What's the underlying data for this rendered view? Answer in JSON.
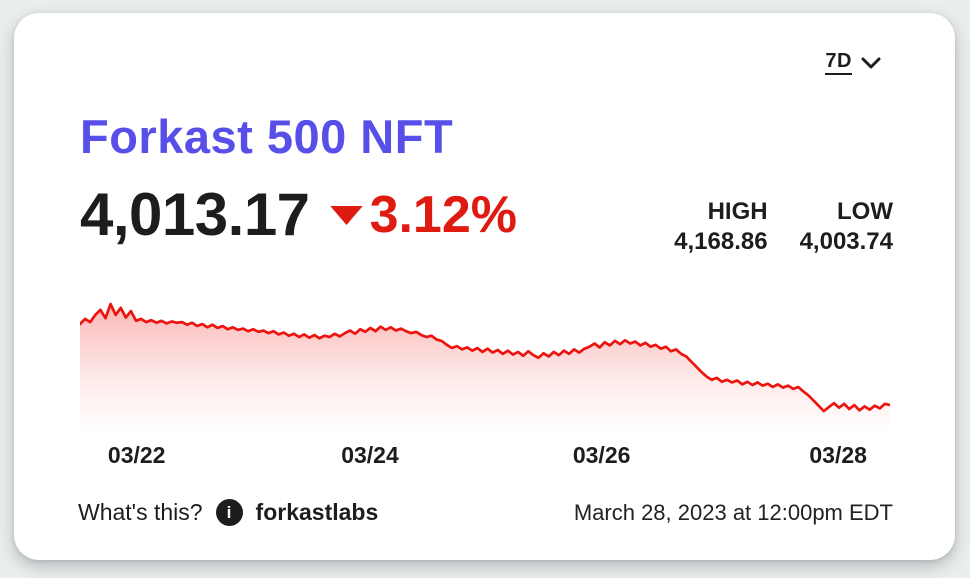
{
  "card": {
    "period_selector": {
      "label": "7D",
      "icon": "chevron-down-icon"
    },
    "title": "Forkast 500 NFT",
    "price": {
      "value": "4,013.17",
      "change": "3.12%",
      "direction": "down",
      "direction_icon": "down-arrow-icon"
    },
    "stats": {
      "high_label": "HIGH",
      "high_value": "4,168.86",
      "low_label": "LOW",
      "low_value": "4,003.74"
    },
    "footer": {
      "whats_this": "What's this?",
      "info_icon": "info-icon",
      "info_glyph": "i",
      "brand": "forkastlabs",
      "timestamp": "March 28, 2023 at 12:00pm EDT"
    }
  },
  "colors": {
    "background": "#ebeeee",
    "card": "#ffffff",
    "text": "#1d1d1d",
    "accent": "#574fe8",
    "negative": "#df1a10",
    "line": "#ed1410"
  },
  "chart_data": {
    "type": "area",
    "title": "Forkast 500 NFT 7-day index",
    "xlabel": "",
    "ylabel": "",
    "grid": false,
    "legend": false,
    "x_tick_labels": [
      "03/22",
      "03/24",
      "03/26",
      "03/28"
    ],
    "x_tick_positions": [
      0.07,
      0.358,
      0.644,
      0.936
    ],
    "ylim": [
      3970,
      4172
    ],
    "high": 4168.86,
    "low": 4003.74,
    "last": 4013.17,
    "line_color": "#ed1410",
    "values": [
      4138,
      4146,
      4141,
      4152,
      4160,
      4147,
      4168.86,
      4152,
      4163,
      4148,
      4158,
      4143,
      4146,
      4141,
      4144,
      4140,
      4143,
      4139,
      4142,
      4140,
      4141,
      4137,
      4140,
      4135,
      4138,
      4133,
      4137,
      4132,
      4135,
      4130,
      4133,
      4129,
      4131,
      4127,
      4130,
      4126,
      4128,
      4124,
      4127,
      4122,
      4125,
      4120,
      4123,
      4118,
      4122,
      4117,
      4121,
      4116,
      4120,
      4118,
      4123,
      4119,
      4124,
      4128,
      4123,
      4130,
      4126,
      4132,
      4127,
      4134,
      4129,
      4133,
      4128,
      4131,
      4127,
      4124,
      4126,
      4121,
      4118,
      4120,
      4114,
      4112,
      4106,
      4101,
      4104,
      4099,
      4102,
      4097,
      4101,
      4095,
      4100,
      4094,
      4098,
      4092,
      4097,
      4091,
      4095,
      4089,
      4096,
      4090,
      4086,
      4093,
      4088,
      4095,
      4090,
      4097,
      4092,
      4099,
      4094,
      4100,
      4103,
      4108,
      4102,
      4110,
      4105,
      4112,
      4107,
      4113,
      4108,
      4111,
      4105,
      4109,
      4103,
      4106,
      4100,
      4103,
      4096,
      4099,
      4092,
      4088,
      4080,
      4072,
      4064,
      4057,
      4052,
      4055,
      4049,
      4052,
      4048,
      4051,
      4045,
      4049,
      4044,
      4048,
      4043,
      4046,
      4041,
      4045,
      4040,
      4043,
      4038,
      4041,
      4034,
      4028,
      4020,
      4012,
      4003.74,
      4010,
      4016,
      4009,
      4015,
      4007,
      4013,
      4005,
      4011,
      4006,
      4012,
      4008,
      4015,
      4013.17
    ]
  }
}
